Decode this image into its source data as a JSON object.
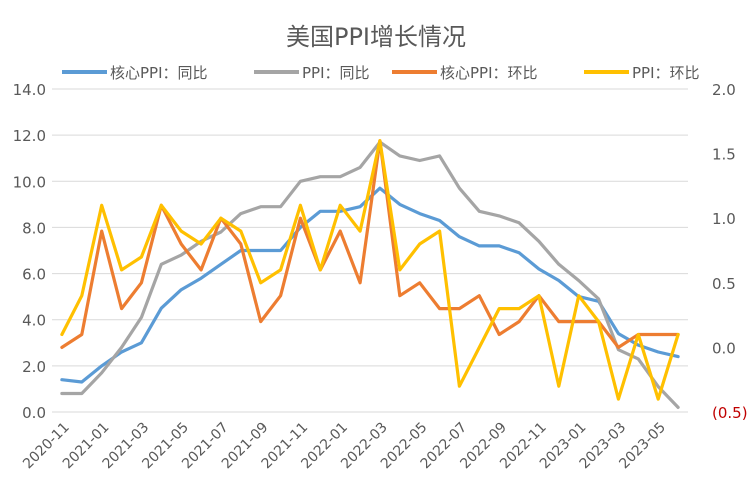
{
  "chart_data": {
    "type": "line",
    "title": "美国PPI增长情况",
    "x": [
      "2020-11",
      "2020-12",
      "2021-01",
      "2021-02",
      "2021-03",
      "2021-04",
      "2021-05",
      "2021-06",
      "2021-07",
      "2021-08",
      "2021-09",
      "2021-10",
      "2021-11",
      "2021-12",
      "2022-01",
      "2022-02",
      "2022-03",
      "2022-04",
      "2022-05",
      "2022-06",
      "2022-07",
      "2022-08",
      "2022-09",
      "2022-10",
      "2022-11",
      "2022-12",
      "2023-01",
      "2023-02",
      "2023-03",
      "2023-04",
      "2023-05",
      "2023-06"
    ],
    "x_tick_labels": [
      "2020-11",
      "2021-01",
      "2021-03",
      "2021-05",
      "2021-07",
      "2021-09",
      "2021-11",
      "2022-01",
      "2022-03",
      "2022-05",
      "2022-07",
      "2022-09",
      "2022-11",
      "2023-01",
      "2023-03",
      "2023-05"
    ],
    "y_left": {
      "range": [
        0,
        14
      ],
      "ticks": [
        "0.0",
        "2.0",
        "4.0",
        "6.0",
        "8.0",
        "10.0",
        "12.0",
        "14.0"
      ]
    },
    "y_right": {
      "range": [
        -0.5,
        2.0
      ],
      "ticks": [
        "(0.5)",
        "0.0",
        "0.5",
        "1.0",
        "1.5",
        "2.0"
      ],
      "negative_color": "#c00000"
    },
    "legend_position": "top",
    "grid": true,
    "series": [
      {
        "name": "核心PPI：同比",
        "axis": "left",
        "color": "#5b9bd5",
        "values": [
          1.4,
          1.3,
          2.0,
          2.6,
          3.0,
          4.5,
          5.3,
          5.8,
          6.4,
          7.0,
          7.0,
          7.0,
          8.0,
          8.7,
          8.7,
          8.9,
          9.7,
          9.0,
          8.6,
          8.3,
          7.6,
          7.2,
          7.2,
          6.9,
          6.2,
          5.7,
          5.0,
          4.8,
          3.4,
          2.9,
          2.6,
          2.4
        ]
      },
      {
        "name": "PPI：同比",
        "axis": "left",
        "color": "#a5a5a5",
        "values": [
          0.8,
          0.8,
          1.7,
          2.8,
          4.1,
          6.4,
          6.8,
          7.4,
          7.8,
          8.6,
          8.9,
          8.9,
          10.0,
          10.2,
          10.2,
          10.6,
          11.7,
          11.1,
          10.9,
          11.1,
          9.7,
          8.7,
          8.5,
          8.2,
          7.4,
          6.4,
          5.7,
          4.9,
          2.7,
          2.3,
          1.1,
          0.2
        ]
      },
      {
        "name": "核心PPI：环比",
        "axis": "right",
        "color": "#ed7d31",
        "values": [
          0.0,
          0.1,
          0.9,
          0.3,
          0.5,
          1.1,
          0.8,
          0.6,
          1.0,
          0.8,
          0.2,
          0.4,
          1.0,
          0.6,
          0.9,
          0.5,
          1.6,
          0.4,
          0.5,
          0.3,
          0.3,
          0.4,
          0.1,
          0.2,
          0.4,
          0.2,
          0.2,
          0.2,
          0.0,
          0.1,
          0.1,
          0.1
        ]
      },
      {
        "name": "PPI：环比",
        "axis": "right",
        "color": "#ffc000",
        "values": [
          0.1,
          0.4,
          1.1,
          0.6,
          0.7,
          1.1,
          0.9,
          0.8,
          1.0,
          0.9,
          0.5,
          0.6,
          1.1,
          0.6,
          1.1,
          0.9,
          1.6,
          0.6,
          0.8,
          0.9,
          -0.3,
          0.0,
          0.3,
          0.3,
          0.4,
          -0.3,
          0.4,
          0.2,
          -0.4,
          0.1,
          -0.4,
          0.1
        ]
      }
    ]
  }
}
